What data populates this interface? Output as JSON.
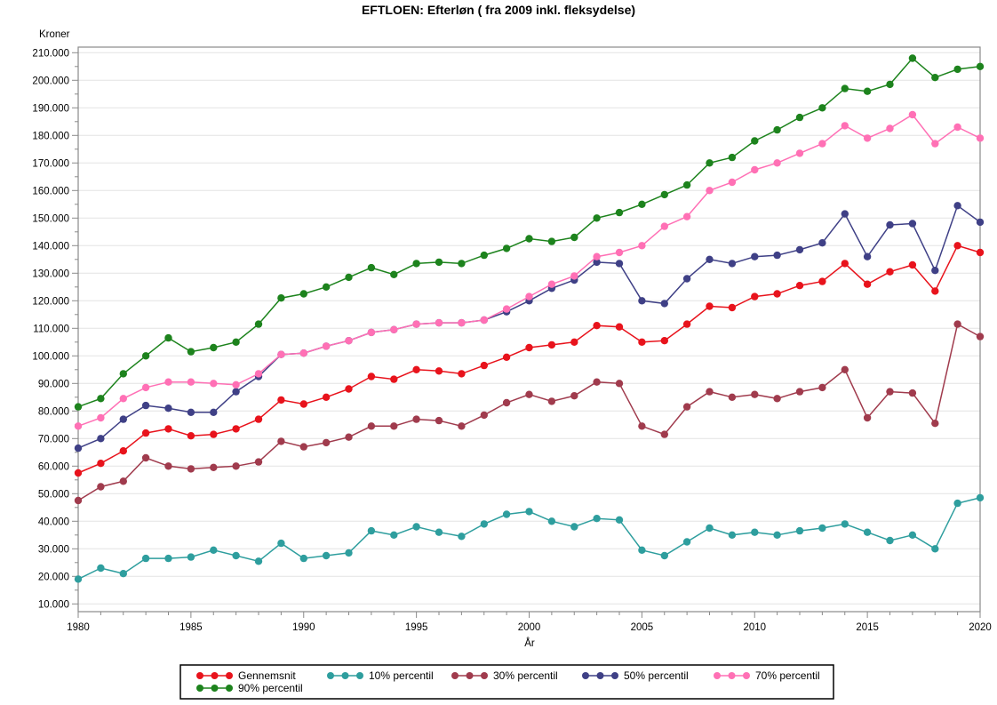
{
  "title": "EFTLOEN: Efterløn ( fra 2009 inkl. fleksydelse)",
  "y_axis": {
    "label": "Kroner",
    "min": 10000,
    "max": 210000,
    "major_step": 10000,
    "minor_step": 5000,
    "tick_labels": [
      "10.000",
      "20.000",
      "30.000",
      "40.000",
      "50.000",
      "60.000",
      "70.000",
      "80.000",
      "90.000",
      "100.000",
      "110.000",
      "120.000",
      "130.000",
      "140.000",
      "150.000",
      "160.000",
      "170.000",
      "180.000",
      "190.000",
      "200.000",
      "210.000"
    ]
  },
  "x_axis": {
    "label": "År",
    "min": 1980,
    "max": 2020,
    "major_step": 5,
    "minor_step": 1,
    "tick_labels": [
      "1980",
      "1985",
      "1990",
      "1995",
      "2000",
      "2005",
      "2010",
      "2015",
      "2020"
    ]
  },
  "legend": {
    "items": [
      "Gennemsnit",
      "10% percentil",
      "30% percentil",
      "50% percentil",
      "70% percentil",
      "90% percentil"
    ]
  },
  "colors": {
    "gennemsnit": "#e8131c",
    "p10": "#2e9e9e",
    "p30": "#a03b4d",
    "p50": "#3f4086",
    "p70": "#ff70b5",
    "p90": "#1d831d",
    "grid": "#e4e4e4",
    "frame": "#8a8a8a",
    "background": "#ffffff"
  },
  "chart_data": {
    "type": "line",
    "title": "EFTLOEN: Efterløn ( fra 2009 inkl. fleksydelse)",
    "xlabel": "År",
    "ylabel": "Kroner",
    "xlim": [
      1980,
      2020
    ],
    "ylim": [
      10000,
      210000
    ],
    "grid": "horizontal",
    "legend_position": "bottom",
    "marker": "filled-circle",
    "x": [
      1980,
      1981,
      1982,
      1983,
      1984,
      1985,
      1986,
      1987,
      1988,
      1989,
      1990,
      1991,
      1992,
      1993,
      1994,
      1995,
      1996,
      1997,
      1998,
      1999,
      2000,
      2001,
      2002,
      2003,
      2004,
      2005,
      2006,
      2007,
      2008,
      2009,
      2010,
      2011,
      2012,
      2013,
      2014,
      2015,
      2016,
      2017,
      2018,
      2019,
      2020
    ],
    "series": [
      {
        "name": "Gennemsnit",
        "color": "#e8131c",
        "values": [
          57500,
          61000,
          65500,
          72000,
          73500,
          71000,
          71500,
          73500,
          77000,
          84000,
          82500,
          85000,
          88000,
          92500,
          91500,
          95000,
          94500,
          93500,
          96500,
          99500,
          103000,
          104000,
          105000,
          111000,
          110500,
          105000,
          105500,
          111500,
          118000,
          117500,
          121500,
          122500,
          125500,
          127000,
          133500,
          126000,
          130500,
          133000,
          123500,
          140000,
          137500
        ]
      },
      {
        "name": "10% percentil",
        "color": "#2e9e9e",
        "values": [
          19000,
          23000,
          21000,
          26500,
          26500,
          27000,
          29500,
          27500,
          25500,
          32000,
          26500,
          27500,
          28500,
          36500,
          35000,
          38000,
          36000,
          34500,
          39000,
          42500,
          43500,
          40000,
          38000,
          41000,
          40500,
          29500,
          27500,
          32500,
          37500,
          35000,
          36000,
          35000,
          36500,
          37500,
          39000,
          36000,
          33000,
          35000,
          30000,
          46500,
          48500
        ]
      },
      {
        "name": "30% percentil",
        "color": "#a03b4d",
        "values": [
          47500,
          52500,
          54500,
          63000,
          60000,
          59000,
          59500,
          60000,
          61500,
          69000,
          67000,
          68500,
          70500,
          74500,
          74500,
          77000,
          76500,
          74500,
          78500,
          83000,
          86000,
          83500,
          85500,
          90500,
          90000,
          74500,
          71500,
          81500,
          87000,
          85000,
          86000,
          84500,
          87000,
          88500,
          95000,
          77500,
          87000,
          86500,
          75500,
          111500,
          107000
        ]
      },
      {
        "name": "50% percentil",
        "color": "#3f4086",
        "values": [
          66500,
          70000,
          77000,
          82000,
          81000,
          79500,
          79500,
          87000,
          92500,
          100500,
          101000,
          103500,
          105500,
          108500,
          109500,
          111500,
          112000,
          112000,
          113000,
          116000,
          120000,
          124500,
          127500,
          134000,
          133500,
          120000,
          119000,
          128000,
          135000,
          133500,
          136000,
          136500,
          138500,
          141000,
          151500,
          136000,
          147500,
          148000,
          131000,
          154500,
          148500
        ]
      },
      {
        "name": "70% percentil",
        "color": "#ff70b5",
        "values": [
          74500,
          77500,
          84500,
          88500,
          90500,
          90500,
          90000,
          89500,
          93500,
          100500,
          101000,
          103500,
          105500,
          108500,
          109500,
          111500,
          112000,
          112000,
          113000,
          117000,
          121500,
          126000,
          129000,
          136000,
          137500,
          140000,
          147000,
          150500,
          160000,
          163000,
          167500,
          170000,
          173500,
          177000,
          183500,
          179000,
          182500,
          187500,
          177000,
          183000,
          179000
        ]
      },
      {
        "name": "90% percentil",
        "color": "#1d831d",
        "values": [
          81500,
          84500,
          93500,
          100000,
          106500,
          101500,
          103000,
          105000,
          111500,
          121000,
          122500,
          125000,
          128500,
          132000,
          129500,
          133500,
          134000,
          133500,
          136500,
          139000,
          142500,
          141500,
          143000,
          150000,
          152000,
          155000,
          158500,
          162000,
          170000,
          172000,
          178000,
          182000,
          186500,
          190000,
          197000,
          196000,
          198500,
          208000,
          201000,
          204000,
          205000
        ]
      }
    ]
  }
}
